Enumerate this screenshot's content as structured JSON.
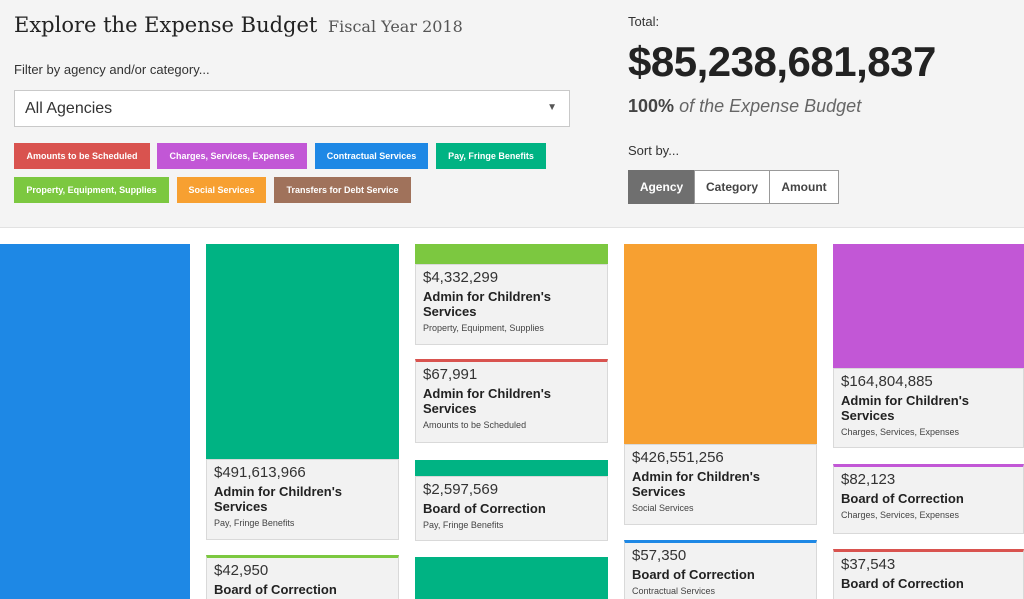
{
  "header": {
    "title": "Explore the Expense Budget",
    "subtitle": "Fiscal Year 2018",
    "filter_label": "Filter by agency and/or category...",
    "agency_select": {
      "value": "All Agencies"
    },
    "tags": [
      {
        "label": "Amounts to be Scheduled",
        "color": "#d9534f"
      },
      {
        "label": "Charges, Services, Expenses",
        "color": "#c257d6"
      },
      {
        "label": "Contractual Services",
        "color": "#1e88e5"
      },
      {
        "label": "Pay, Fringe Benefits",
        "color": "#00b383"
      },
      {
        "label": "Property, Equipment, Supplies",
        "color": "#7cc840"
      },
      {
        "label": "Social Services",
        "color": "#f7a031"
      },
      {
        "label": "Transfers for Debt Service",
        "color": "#a0725b"
      }
    ]
  },
  "summary": {
    "total_label": "Total:",
    "total_value": "$85,238,681,837",
    "percent": "100%",
    "percent_suffix": "of the Expense Budget",
    "sort_label": "Sort by...",
    "sort_options": [
      "Agency",
      "Category",
      "Amount"
    ],
    "sort_active": "Agency"
  },
  "cards": [
    {
      "amount": "$491,613,966",
      "agency": "Admin for Children's Services",
      "category": "Pay, Fringe Benefits",
      "color": "#00b383"
    },
    {
      "amount": "$42,950",
      "agency": "Board of Correction",
      "category": "",
      "color": "#7cc840"
    },
    {
      "amount": "$4,332,299",
      "agency": "Admin for Children's Services",
      "category": "Property, Equipment, Supplies",
      "color": "#7cc840"
    },
    {
      "amount": "$67,991",
      "agency": "Admin for Children's Services",
      "category": "Amounts to be Scheduled",
      "color": "#d9534f"
    },
    {
      "amount": "$2,597,569",
      "agency": "Board of Correction",
      "category": "Pay, Fringe Benefits",
      "color": "#00b383"
    },
    {
      "amount": "",
      "agency": "",
      "category": "",
      "color": "#00b383"
    },
    {
      "amount": "$426,551,256",
      "agency": "Admin for Children's Services",
      "category": "Social Services",
      "color": "#f7a031"
    },
    {
      "amount": "$57,350",
      "agency": "Board of Correction",
      "category": "Contractual Services",
      "color": "#1e88e5"
    },
    {
      "amount": "$164,804,885",
      "agency": "Admin for Children's Services",
      "category": "Charges, Services, Expenses",
      "color": "#c257d6"
    },
    {
      "amount": "$82,123",
      "agency": "Board of Correction",
      "category": "Charges, Services, Expenses",
      "color": "#c257d6"
    },
    {
      "amount": "$37,543",
      "agency": "Board of Correction",
      "category": "",
      "color": "#d9534f"
    }
  ],
  "left_block": {
    "color": "#1e88e5"
  }
}
